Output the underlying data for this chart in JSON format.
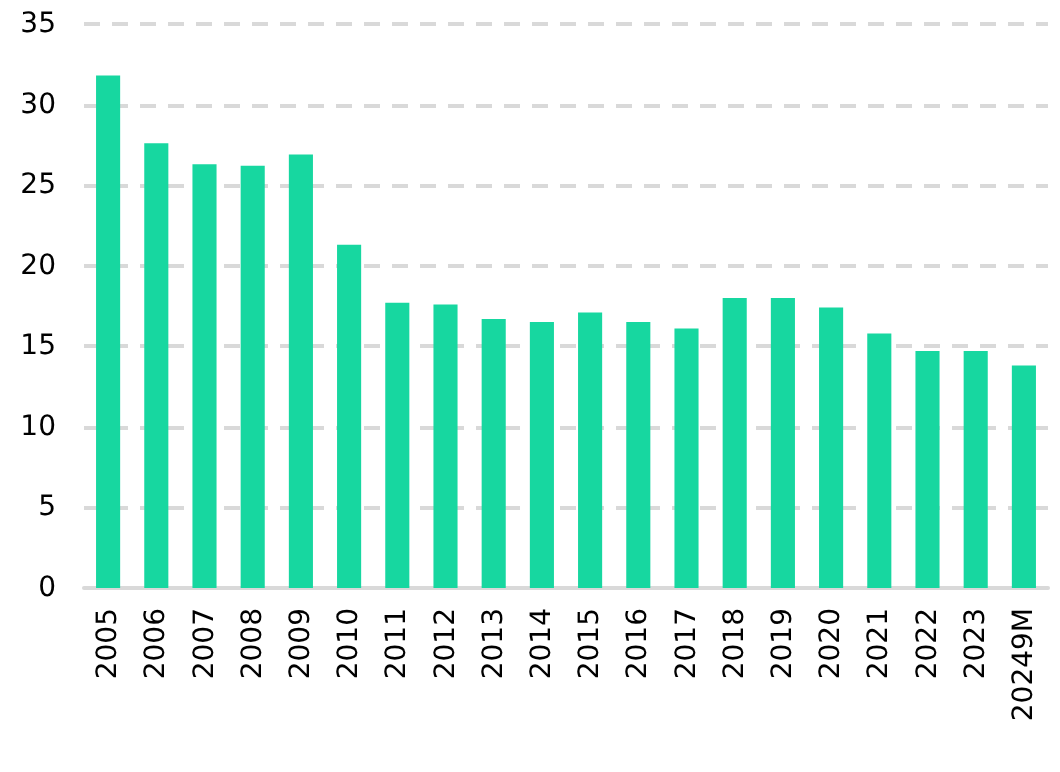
{
  "chart_data": {
    "type": "bar",
    "categories": [
      "2005",
      "2006",
      "2007",
      "2008",
      "2009",
      "2010",
      "2011",
      "2012",
      "2013",
      "2014",
      "2015",
      "2016",
      "2017",
      "2018",
      "2019",
      "2020",
      "2021",
      "2022",
      "2023",
      "20249M"
    ],
    "values": [
      31.8,
      27.6,
      26.3,
      26.2,
      26.9,
      21.3,
      17.7,
      17.6,
      16.7,
      16.5,
      17.1,
      16.5,
      16.1,
      18.0,
      18.0,
      17.4,
      15.8,
      14.7,
      14.7,
      13.8
    ],
    "color": "#17d7a0",
    "ylim": [
      0,
      35
    ],
    "yticks": [
      0,
      5,
      10,
      15,
      20,
      25,
      30,
      35
    ],
    "grid": "y",
    "line_style": "dashed"
  }
}
